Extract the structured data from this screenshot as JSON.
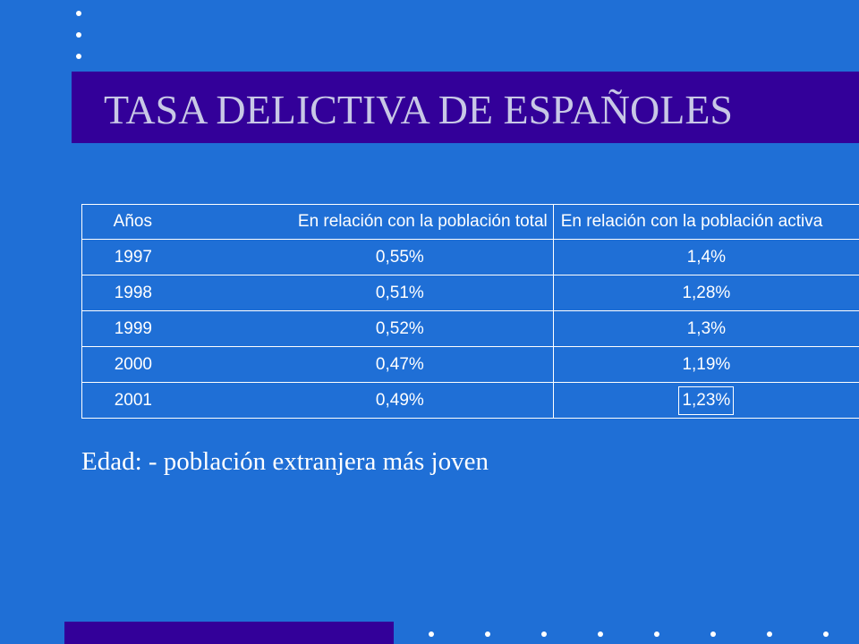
{
  "slide": {
    "title": "TASA DELICTIVA DE ESPAÑOLES",
    "note": "Edad: - población  extranjera  más  joven"
  },
  "table": {
    "headers": [
      "Años",
      "En relación con la población total",
      "En relación con la población activa"
    ],
    "rows": [
      {
        "year": "1997",
        "total": "0,55%",
        "activa": "1,4%"
      },
      {
        "year": "1998",
        "total": "0,51%",
        "activa": "1,28%"
      },
      {
        "year": "1999",
        "total": "0,52%",
        "activa": "1,3%"
      },
      {
        "year": "2000",
        "total": "0,47%",
        "activa": "1,19%"
      },
      {
        "year": "2001",
        "total": "0,49%",
        "activa": "1,23%"
      }
    ]
  },
  "colors": {
    "background": "#1f6fd6",
    "title_bar": "#330099",
    "title_text": "#c8c8e6",
    "text": "#ffffff"
  }
}
